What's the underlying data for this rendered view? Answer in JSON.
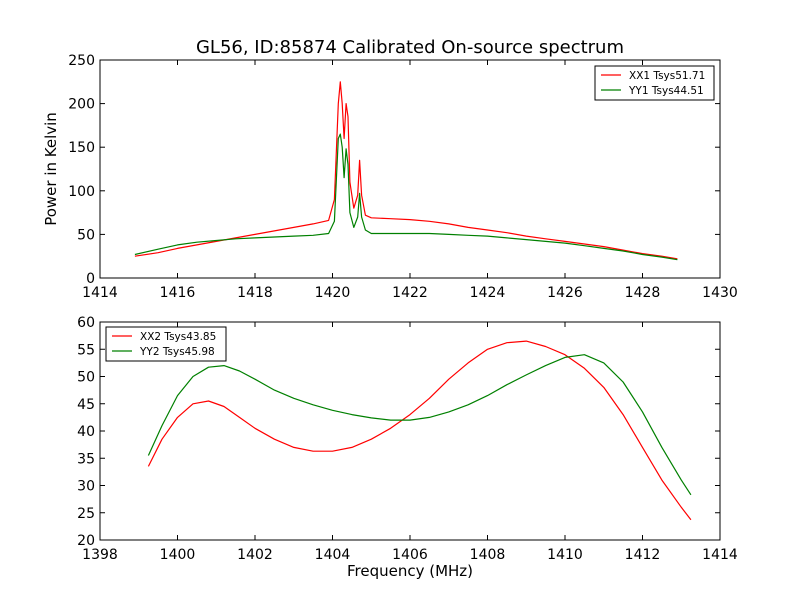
{
  "chart_data": [
    {
      "type": "line",
      "title": "GL56, ID:85874 Calibrated On-source spectrum",
      "xlabel": "",
      "ylabel": "Power in Kelvin",
      "xlim": [
        1414,
        1430
      ],
      "ylim": [
        0,
        250
      ],
      "xticks": [
        "1414",
        "1416",
        "1418",
        "1420",
        "1422",
        "1424",
        "1426",
        "1428",
        "1430"
      ],
      "yticks": [
        "0",
        "50",
        "100",
        "150",
        "200",
        "250"
      ],
      "legend_position": "top-right",
      "series": [
        {
          "name": "XX1 Tsys51.71",
          "color": "#ff0000",
          "x": [
            1414.9,
            1415.5,
            1416.0,
            1416.5,
            1417.0,
            1417.5,
            1418.0,
            1418.5,
            1419.0,
            1419.5,
            1419.9,
            1420.05,
            1420.15,
            1420.2,
            1420.25,
            1420.3,
            1420.35,
            1420.4,
            1420.45,
            1420.55,
            1420.65,
            1420.7,
            1420.75,
            1420.85,
            1421.0,
            1421.5,
            1422.0,
            1422.5,
            1423.0,
            1423.5,
            1424.0,
            1424.5,
            1425.0,
            1425.5,
            1426.0,
            1426.5,
            1427.0,
            1427.5,
            1428.0,
            1428.5,
            1428.9
          ],
          "y": [
            25,
            29,
            34,
            38,
            42,
            46,
            50,
            54,
            58,
            62,
            66,
            90,
            200,
            225,
            200,
            160,
            200,
            185,
            110,
            80,
            95,
            135,
            95,
            72,
            69,
            68,
            67,
            65,
            62,
            58,
            55,
            52,
            48,
            45,
            42,
            39,
            36,
            32,
            28,
            25,
            22
          ]
        },
        {
          "name": "YY1 Tsys44.51",
          "color": "#008000",
          "x": [
            1414.9,
            1415.5,
            1416.0,
            1416.5,
            1417.0,
            1417.5,
            1418.0,
            1418.5,
            1419.0,
            1419.5,
            1419.9,
            1420.05,
            1420.15,
            1420.2,
            1420.25,
            1420.3,
            1420.35,
            1420.4,
            1420.45,
            1420.55,
            1420.65,
            1420.7,
            1420.75,
            1420.85,
            1421.0,
            1421.5,
            1422.0,
            1422.5,
            1423.0,
            1423.5,
            1424.0,
            1424.5,
            1425.0,
            1425.5,
            1426.0,
            1426.5,
            1427.0,
            1427.5,
            1428.0,
            1428.5,
            1428.9
          ],
          "y": [
            27,
            33,
            38,
            41,
            43,
            45,
            46,
            47,
            48,
            49,
            51,
            65,
            160,
            165,
            150,
            115,
            148,
            130,
            75,
            58,
            70,
            97,
            70,
            55,
            51,
            51,
            51,
            51,
            50,
            49,
            48,
            46,
            44,
            42,
            40,
            37,
            34,
            31,
            27,
            24,
            21
          ]
        }
      ]
    },
    {
      "type": "line",
      "title": "",
      "xlabel": "Frequency (MHz)",
      "ylabel": "",
      "xlim": [
        1398,
        1414
      ],
      "ylim": [
        20,
        60
      ],
      "xticks": [
        "1398",
        "1400",
        "1402",
        "1404",
        "1406",
        "1408",
        "1410",
        "1412",
        "1414"
      ],
      "yticks": [
        "20",
        "25",
        "30",
        "35",
        "40",
        "45",
        "50",
        "55",
        "60"
      ],
      "legend_position": "top-left",
      "series": [
        {
          "name": "XX2 Tsys43.85",
          "color": "#ff0000",
          "x": [
            1399.25,
            1399.6,
            1400.0,
            1400.4,
            1400.8,
            1401.2,
            1401.6,
            1402.0,
            1402.5,
            1403.0,
            1403.5,
            1404.0,
            1404.5,
            1405.0,
            1405.5,
            1406.0,
            1406.5,
            1407.0,
            1407.5,
            1408.0,
            1408.5,
            1409.0,
            1409.5,
            1410.0,
            1410.5,
            1411.0,
            1411.5,
            1412.0,
            1412.5,
            1413.0,
            1413.25
          ],
          "y": [
            33.5,
            38.5,
            42.5,
            45.0,
            45.5,
            44.5,
            42.5,
            40.5,
            38.5,
            37.0,
            36.3,
            36.3,
            37.0,
            38.5,
            40.5,
            43.0,
            46.0,
            49.5,
            52.5,
            55.0,
            56.2,
            56.5,
            55.5,
            54.0,
            51.5,
            48.0,
            43.0,
            37.0,
            31.0,
            26.0,
            23.7
          ]
        },
        {
          "name": "YY2 Tsys45.98",
          "color": "#008000",
          "x": [
            1399.25,
            1399.6,
            1400.0,
            1400.4,
            1400.8,
            1401.2,
            1401.6,
            1402.0,
            1402.5,
            1403.0,
            1403.5,
            1404.0,
            1404.5,
            1405.0,
            1405.5,
            1406.0,
            1406.5,
            1407.0,
            1407.5,
            1408.0,
            1408.5,
            1409.0,
            1409.5,
            1410.0,
            1410.5,
            1411.0,
            1411.5,
            1412.0,
            1412.5,
            1413.0,
            1413.25
          ],
          "y": [
            35.5,
            41.0,
            46.5,
            50.0,
            51.7,
            52.0,
            51.0,
            49.5,
            47.5,
            46.0,
            44.8,
            43.8,
            43.0,
            42.4,
            42.0,
            42.0,
            42.5,
            43.5,
            44.8,
            46.5,
            48.5,
            50.3,
            52.0,
            53.5,
            54.0,
            52.5,
            49.0,
            43.5,
            37.0,
            31.0,
            28.3
          ]
        }
      ]
    }
  ]
}
